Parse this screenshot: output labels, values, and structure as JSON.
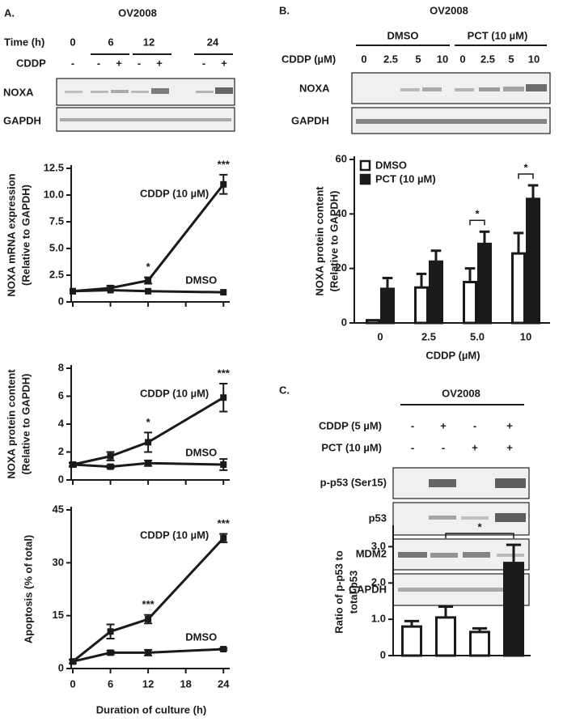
{
  "panel_a": {
    "label": "A.",
    "cell_line": "OV2008",
    "time_header": "Time (h)",
    "times": [
      "0",
      "6",
      "12",
      "24"
    ],
    "cddp_header": "CDDP",
    "cddp": [
      "-",
      "-",
      "+",
      "-",
      "+",
      "-",
      "+"
    ],
    "blots": [
      "NOXA",
      "GAPDH"
    ]
  },
  "panel_b": {
    "label": "B.",
    "cell_line": "OV2008",
    "groups": [
      "DMSO",
      "PCT (10 µM)"
    ],
    "cddp_header": "CDDP (µM)",
    "doses": [
      "0",
      "2.5",
      "5",
      "10",
      "0",
      "2.5",
      "5",
      "10"
    ],
    "blots": [
      "NOXA",
      "GAPDH"
    ]
  },
  "panel_c": {
    "label": "C.",
    "cell_line": "OV2008",
    "rows": [
      {
        "name": "CDDP (5 µM)",
        "signs": [
          "-",
          "+",
          "-",
          "+"
        ]
      },
      {
        "name": "PCT (10 µM)",
        "signs": [
          "-",
          "-",
          "+",
          "+"
        ]
      }
    ],
    "blots": [
      "p-p53 (Ser15)",
      "p53",
      "MDM2",
      "GAPDH"
    ]
  },
  "chart_data": [
    {
      "type": "line",
      "y_label": [
        "NOXA mRNA expression",
        "(Relative to GAPDH)"
      ],
      "x": [
        0,
        6,
        12,
        24
      ],
      "xlim": [
        0,
        25
      ],
      "xticks": [
        0,
        6,
        12,
        18,
        24
      ],
      "xtick_labels": false,
      "ylim": [
        0,
        12.5
      ],
      "yticks": [
        0,
        2.5,
        {
          "value": 5,
          "label": "5.0"
        },
        7.5,
        {
          "value": 10,
          "label": "10.0"
        },
        12.5
      ],
      "series": [
        {
          "name": "CDDP (10 µM)",
          "color": "#1a1a1a",
          "values": [
            1,
            1.3,
            2.0,
            11.0
          ],
          "errors": [
            0,
            0.2,
            0.3,
            0.9
          ],
          "significance": [
            null,
            null,
            "*",
            "***"
          ]
        },
        {
          "name": "DMSO",
          "color": "#1a1a1a",
          "values": [
            1,
            1.1,
            1.0,
            0.9
          ],
          "errors": [
            0,
            0,
            0,
            0
          ]
        }
      ]
    },
    {
      "type": "line",
      "y_label": [
        "NOXA protein content",
        "(Relative to GAPDH)"
      ],
      "x": [
        0,
        6,
        12,
        24
      ],
      "xlim": [
        0,
        25
      ],
      "xticks": [
        0,
        6,
        12,
        18,
        24
      ],
      "xtick_labels": false,
      "ylim": [
        0,
        8
      ],
      "yticks": [
        0,
        2,
        4,
        6,
        8
      ],
      "series": [
        {
          "name": "CDDP (10 µM)",
          "color": "#1a1a1a",
          "values": [
            1.1,
            1.7,
            2.7,
            5.9
          ],
          "errors": [
            0.15,
            0.3,
            0.7,
            1.0
          ],
          "significance": [
            null,
            null,
            "*",
            "***"
          ]
        },
        {
          "name": "DMSO",
          "color": "#1a1a1a",
          "values": [
            1.1,
            0.95,
            1.2,
            1.1
          ],
          "errors": [
            0.1,
            0.1,
            0.2,
            0.4
          ]
        }
      ]
    },
    {
      "type": "line",
      "y_label": [
        "Apoptosis (% of total)"
      ],
      "x_label": "Duration of culture (h)",
      "x": [
        0,
        6,
        12,
        24
      ],
      "xlim": [
        0,
        25
      ],
      "xticks": [
        0,
        6,
        12,
        18,
        24
      ],
      "xtick_labels": true,
      "ylim": [
        0,
        45
      ],
      "yticks": [
        0,
        15,
        30,
        45
      ],
      "series": [
        {
          "name": "CDDP (10 µM)",
          "color": "#1a1a1a",
          "values": [
            2,
            10.5,
            14,
            37
          ],
          "errors": [
            0.5,
            2,
            1.2,
            1.2
          ],
          "significance": [
            null,
            null,
            "***",
            "***"
          ]
        },
        {
          "name": "DMSO",
          "color": "#1a1a1a",
          "values": [
            2,
            4.5,
            4.5,
            5.5
          ],
          "errors": [
            0,
            0.5,
            0.8,
            0.3
          ]
        }
      ]
    },
    {
      "type": "bar",
      "y_label": [
        "NOXA protein content",
        "(Relative to GAPDH)"
      ],
      "x_label": "CDDP (µM)",
      "categories": [
        "0",
        "2.5",
        "5.0",
        "10"
      ],
      "ylim": [
        0,
        60
      ],
      "yticks": [
        0,
        20,
        40,
        60
      ],
      "legend": "top-left",
      "series": [
        {
          "name": "DMSO",
          "color": "#ffffff",
          "values": [
            1,
            13,
            15,
            25.5
          ],
          "errors": [
            0,
            5,
            5,
            7.5
          ]
        },
        {
          "name": "PCT (10 µM)",
          "color": "#1a1a1a",
          "values": [
            12.5,
            22.5,
            29,
            45.5
          ],
          "errors": [
            4,
            4,
            4.5,
            5
          ]
        }
      ],
      "brackets": [
        {
          "category": "5.0",
          "label": "*"
        },
        {
          "category": "10",
          "label": "*"
        }
      ]
    },
    {
      "type": "bar",
      "y_label": [
        "Ratio of p-p53 to",
        "total  p53"
      ],
      "categories": [
        null,
        null,
        null,
        null
      ],
      "ylim": [
        0,
        3.5
      ],
      "yticks": [
        0,
        {
          "value": 1,
          "label": "1.0"
        },
        {
          "value": 2,
          "label": "2.0"
        },
        {
          "value": 3,
          "label": "3.0"
        }
      ],
      "values": [
        0.8,
        1.05,
        0.65,
        2.55
      ],
      "errors": [
        0.15,
        0.3,
        0.1,
        0.5
      ],
      "colors": [
        "#ffffff",
        "#ffffff",
        "#ffffff",
        "#1a1a1a"
      ],
      "bracket": {
        "bars": [
          1,
          3
        ],
        "label": "*"
      }
    }
  ]
}
